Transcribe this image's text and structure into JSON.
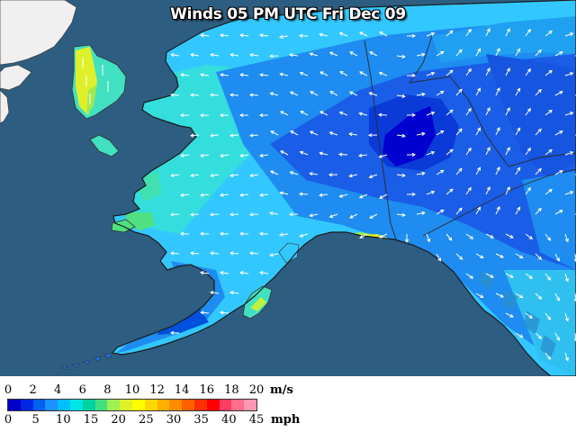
{
  "title": "Winds 05 PM UTC Fri Dec 09",
  "legend": {
    "ms_label": "m/s",
    "mph_label": "mph",
    "ms_ticks": [
      "0",
      "2",
      "4",
      "6",
      "8",
      "10",
      "12",
      "14",
      "16",
      "18",
      "20"
    ],
    "mph_ticks": [
      "0",
      "5",
      "10",
      "15",
      "20",
      "25",
      "30",
      "35",
      "40",
      "45"
    ],
    "colors": [
      "#0000c8",
      "#0028e6",
      "#0060f0",
      "#1e90ff",
      "#00bfff",
      "#00e6e6",
      "#00d2a0",
      "#40e080",
      "#a0f050",
      "#e0f028",
      "#ffff00",
      "#ffd700",
      "#ffb000",
      "#ff8c00",
      "#ff6000",
      "#ff3000",
      "#ff0000",
      "#ff3c64",
      "#ff6e8c",
      "#ff96b4"
    ]
  },
  "colors": {
    "ocean": "#2d5e82",
    "land_other": "#f0f0f0",
    "wind_arrow": "#ffffff",
    "calm": "#0000d0",
    "light": "#1e6ee6",
    "moderate": "#32c8ff",
    "breezy": "#40e0d0",
    "strong": "#c8f050"
  }
}
